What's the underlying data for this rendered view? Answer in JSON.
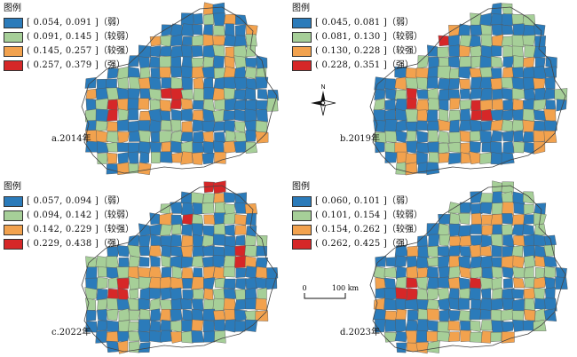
{
  "colors": {
    "weak": "#2b7bba",
    "fair": "#a6cf98",
    "strong": "#f2a24e",
    "strongest": "#d62728",
    "border": "#555555"
  },
  "legend_title": "图例",
  "panels": [
    {
      "caption": "a.2014年",
      "classes": [
        {
          "range": "[ 0.054, 0.091 ]",
          "label": "（弱）"
        },
        {
          "range": "( 0.091, 0.145 ]",
          "label": "（较弱）"
        },
        {
          "range": "( 0.145, 0.257 ]",
          "label": "（较强）"
        },
        {
          "range": "( 0.257, 0.379 ]",
          "label": "（强）"
        }
      ]
    },
    {
      "caption": "b.2019年",
      "classes": [
        {
          "range": "[ 0.045, 0.081 ]",
          "label": "（弱）"
        },
        {
          "range": "( 0.081, 0.130 ]",
          "label": "（较弱）"
        },
        {
          "range": "( 0.130, 0.228 ]",
          "label": "（较强）"
        },
        {
          "range": "( 0.228, 0.351 ]",
          "label": "（强）"
        }
      ]
    },
    {
      "caption": "c.2022年",
      "classes": [
        {
          "range": "[ 0.057, 0.094 ]",
          "label": "（弱）"
        },
        {
          "range": "( 0.094, 0.142 ]",
          "label": "（较弱）"
        },
        {
          "range": "( 0.142, 0.229 ]",
          "label": "（较强）"
        },
        {
          "range": "( 0.229, 0.438 ]",
          "label": "（强）"
        }
      ]
    },
    {
      "caption": "d.2023年",
      "classes": [
        {
          "range": "[ 0.060, 0.101 ]",
          "label": "（弱）"
        },
        {
          "range": "( 0.101, 0.154 ]",
          "label": "（较弱）"
        },
        {
          "range": "( 0.154, 0.262 ]",
          "label": "（较强）"
        },
        {
          "range": "( 0.262, 0.425 ]",
          "label": "（强）"
        }
      ]
    }
  ],
  "north_label": "N",
  "scale": {
    "start": "0",
    "end": "100 km"
  }
}
